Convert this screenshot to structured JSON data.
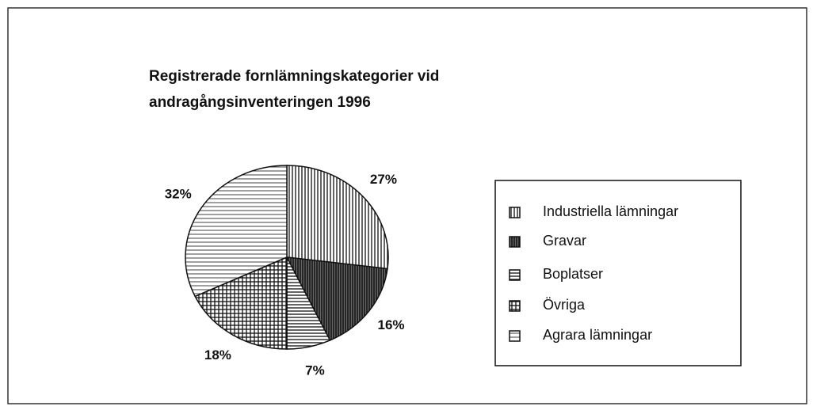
{
  "chart_data": {
    "type": "pie",
    "title": [
      "Registrerade fornlämningskategorier vid",
      "andragångsinventeringen 1996"
    ],
    "categories": [
      "Industriella lämningar",
      "Gravar",
      "Boplatser",
      "Övriga",
      "Agrara lämningar"
    ],
    "values": [
      27,
      16,
      7,
      18,
      32
    ],
    "value_labels": [
      "27%",
      "16%",
      "7%",
      "18%",
      "32%"
    ],
    "color": "#111111"
  }
}
